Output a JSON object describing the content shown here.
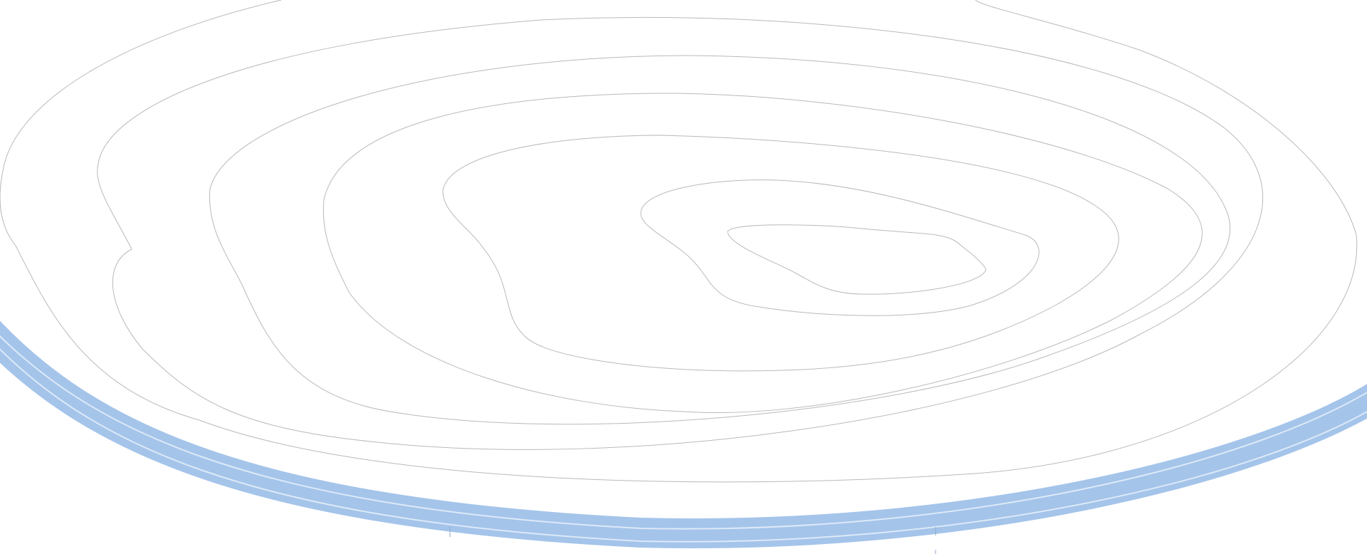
{
  "map": {
    "type": "topographic-contour-map",
    "labels": [],
    "contour_line_count": 8,
    "water_feature": {
      "kind": "curved-river-band",
      "lane_count": 3
    }
  },
  "colors": {
    "background": "#ffffff",
    "contour_line": "#b9b9b9",
    "water_fill": "#a4c4ea",
    "water_separator": "#dde9f7",
    "tick_mark": "#8fa9c8"
  }
}
